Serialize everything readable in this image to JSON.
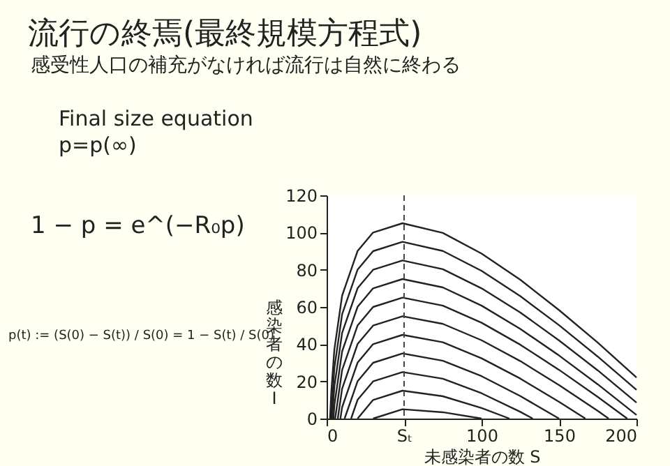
{
  "chart_data": {
    "type": "line",
    "title": "流行の終焉(最終規模方程式)",
    "subtitle": "感受性人口の補充がなければ流行は自然に終わる",
    "annotations": [
      "Final size equation",
      "p=p(∞)",
      "1 − p = e^(−R₀p)",
      "p(t) := (S(0) − S(t)) / S(0) = 1 − S(t) / S(0)"
    ],
    "xlabel": "未感染者の数 S",
    "ylabel": "感染者の数 I",
    "xlim": [
      0,
      200
    ],
    "xticks": [
      0,
      {
        "value": 50,
        "label": "Sₜ"
      },
      100,
      150,
      200
    ],
    "ylim": [
      0,
      120
    ],
    "yticks": [
      0,
      20,
      40,
      60,
      80,
      100,
      120
    ],
    "grid": false,
    "legend": false,
    "marker": "none",
    "line_style": "solid",
    "ref_lines": [
      {
        "axis": "x",
        "value": 50,
        "label": null,
        "line_style": "dashed",
        "color": "#444444"
      }
    ],
    "series": [
      {
        "color": "#222222",
        "x": [
          2.2,
          3,
          5,
          10,
          20,
          30,
          49,
          75,
          100,
          125,
          150,
          175,
          200
        ],
        "values": [
          0,
          14.1,
          37.2,
          66.1,
          90.1,
          100,
          105,
          99.8,
          88.7,
          74.6,
          58.3,
          40.8,
          22.1
        ]
      },
      {
        "color": "#222222",
        "x": [
          2.8,
          5,
          10,
          20,
          30,
          49,
          75,
          100,
          125,
          150,
          175,
          200
        ],
        "values": [
          0,
          27.2,
          56.1,
          80.1,
          90,
          95,
          90.1,
          79.4,
          65.8,
          50.2,
          33.3,
          15.4
        ]
      },
      {
        "color": "#222222",
        "x": [
          3.5,
          5,
          10,
          20,
          30,
          49,
          75,
          100,
          125,
          150,
          175,
          200
        ],
        "values": [
          0,
          17.2,
          46.1,
          70.1,
          80,
          85,
          80.3,
          70,
          57,
          42,
          25.9,
          8.6
        ]
      },
      {
        "color": "#222222",
        "x": [
          4.4,
          5,
          10,
          20,
          30,
          49,
          75,
          100,
          125,
          150,
          175,
          200
        ],
        "values": [
          0,
          7.2,
          36.1,
          60.1,
          70,
          75,
          70.5,
          60.7,
          48.2,
          33.9,
          18.4,
          1.9
        ]
      },
      {
        "color": "#222222",
        "x": [
          5.5,
          10,
          20,
          30,
          49,
          75,
          100,
          125,
          150,
          175,
          194
        ],
        "values": [
          0,
          26.1,
          50.1,
          60,
          65,
          60.7,
          51.5,
          39.7,
          26.2,
          11.6,
          0
        ]
      },
      {
        "color": "#222222",
        "x": [
          7.2,
          10,
          20,
          30,
          49,
          75,
          100,
          125,
          150,
          175,
          182
        ],
        "values": [
          0,
          16.1,
          40.1,
          50,
          55,
          50.9,
          42.1,
          30.9,
          18,
          4.1,
          0
        ]
      },
      {
        "color": "#222222",
        "x": [
          8.9,
          10,
          20,
          30,
          49,
          75,
          100,
          125,
          150,
          167
        ],
        "values": [
          0,
          6.1,
          30.1,
          40,
          45,
          41,
          32.4,
          21.5,
          9,
          0
        ]
      },
      {
        "color": "#222222",
        "x": [
          11.6,
          20,
          30,
          49,
          75,
          100,
          125,
          150
        ],
        "values": [
          0,
          20.1,
          30,
          35,
          31.1,
          22.8,
          12.1,
          0
        ]
      },
      {
        "color": "#222222",
        "x": [
          15.8,
          20,
          30,
          49,
          75,
          100,
          125,
          133
        ],
        "values": [
          0,
          10.1,
          20,
          25,
          21.4,
          13.6,
          3.6,
          0
        ]
      },
      {
        "color": "#222222",
        "x": [
          20,
          30,
          49,
          75,
          100,
          118
        ],
        "values": [
          0,
          10,
          15,
          12,
          5.7,
          0
        ]
      },
      {
        "color": "#222222",
        "x": [
          30,
          49,
          75,
          100
        ],
        "values": [
          0,
          5,
          3.4,
          0
        ]
      }
    ]
  }
}
